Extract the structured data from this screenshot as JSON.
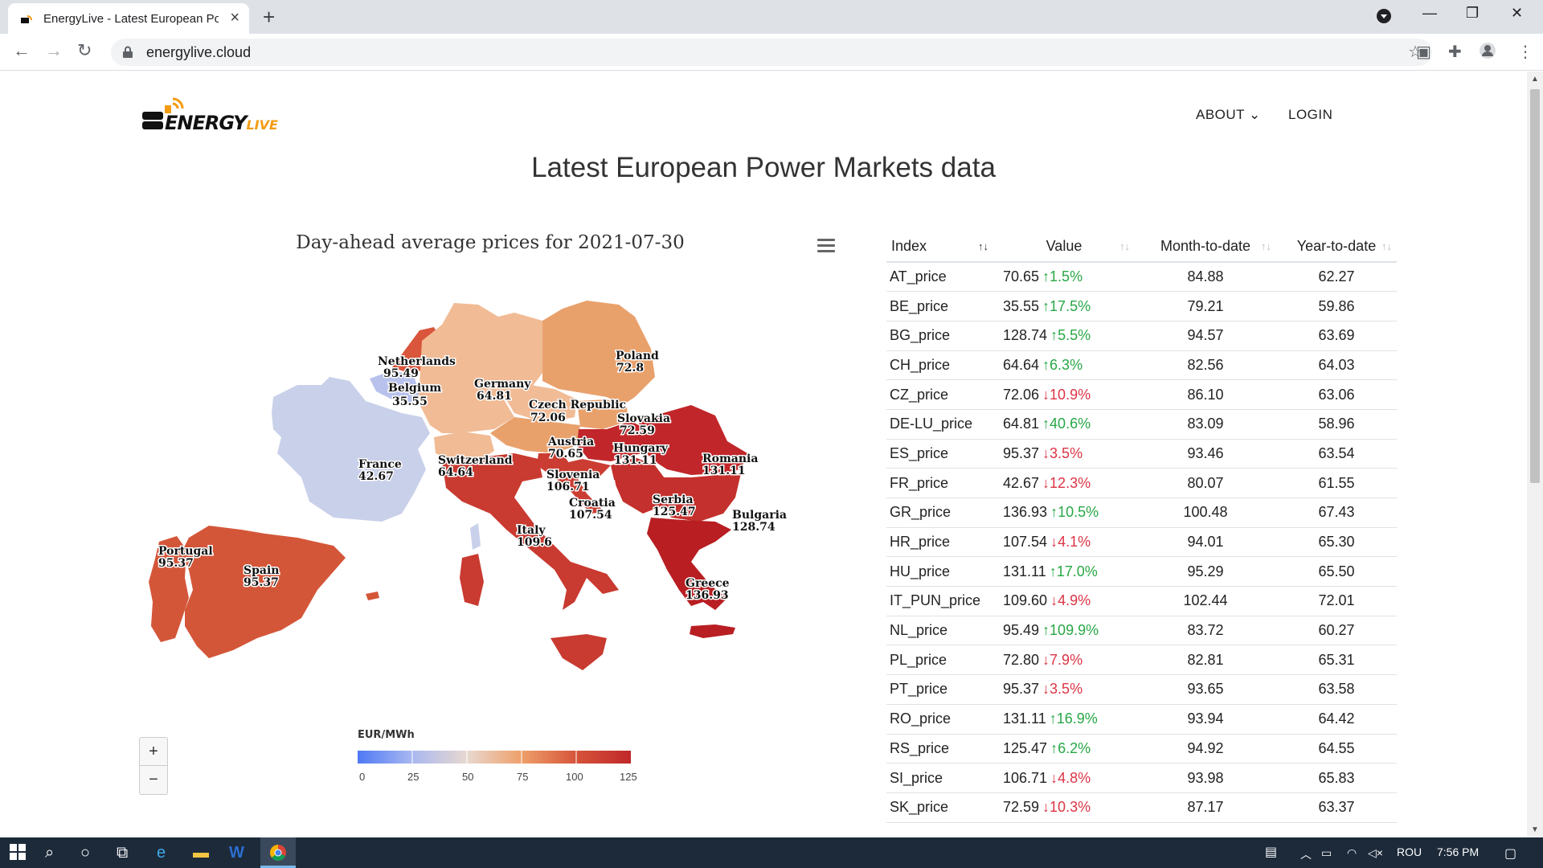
{
  "browser": {
    "tab_title": "EnergyLive - Latest European Po",
    "url": "energylive.cloud"
  },
  "nav": {
    "about": "ABOUT",
    "login": "LOGIN"
  },
  "logo": {
    "text": "ENERGY",
    "sub": "LIVE"
  },
  "page_title": "Latest European Power Markets data",
  "chart": {
    "title": "Day-ahead average prices for 2021-07-30",
    "legend_title": "EUR/MWh",
    "legend_ticks": [
      "0",
      "25",
      "50",
      "75",
      "100",
      "125"
    ]
  },
  "chart_data": {
    "type": "map",
    "title": "Day-ahead average prices for 2021-07-30",
    "unit": "EUR/MWh",
    "range": [
      0,
      125
    ],
    "regions": [
      {
        "name": "Netherlands",
        "value": "95.49"
      },
      {
        "name": "Belgium",
        "value": "35.55"
      },
      {
        "name": "Germany",
        "value": "64.81"
      },
      {
        "name": "Poland",
        "value": "72.8"
      },
      {
        "name": "Czech Republic",
        "value": "72.06"
      },
      {
        "name": "Slovakia",
        "value": "72.59"
      },
      {
        "name": "Austria",
        "value": "70.65"
      },
      {
        "name": "Hungary",
        "value": "131.11"
      },
      {
        "name": "Romania",
        "value": "131.11"
      },
      {
        "name": "France",
        "value": "42.67"
      },
      {
        "name": "Switzerland",
        "value": "64.64"
      },
      {
        "name": "Slovenia",
        "value": "106.71"
      },
      {
        "name": "Croatia",
        "value": "107.54"
      },
      {
        "name": "Serbia",
        "value": "125.47"
      },
      {
        "name": "Bulgaria",
        "value": "128.74"
      },
      {
        "name": "Italy",
        "value": "109.6"
      },
      {
        "name": "Portugal",
        "value": "95.37"
      },
      {
        "name": "Spain",
        "value": "95.37"
      },
      {
        "name": "Greece",
        "value": "136.93"
      }
    ]
  },
  "table": {
    "headers": [
      "Index",
      "Value",
      "Month-to-date",
      "Year-to-date"
    ],
    "rows": [
      {
        "index": "AT_price",
        "value": "70.65",
        "change": "1.5%",
        "dir": "up",
        "mtd": "84.88",
        "ytd": "62.27"
      },
      {
        "index": "BE_price",
        "value": "35.55",
        "change": "17.5%",
        "dir": "up",
        "mtd": "79.21",
        "ytd": "59.86"
      },
      {
        "index": "BG_price",
        "value": "128.74",
        "change": "5.5%",
        "dir": "up",
        "mtd": "94.57",
        "ytd": "63.69"
      },
      {
        "index": "CH_price",
        "value": "64.64",
        "change": "6.3%",
        "dir": "up",
        "mtd": "82.56",
        "ytd": "64.03"
      },
      {
        "index": "CZ_price",
        "value": "72.06",
        "change": "10.9%",
        "dir": "down",
        "mtd": "86.10",
        "ytd": "63.06"
      },
      {
        "index": "DE-LU_price",
        "value": "64.81",
        "change": "40.6%",
        "dir": "up",
        "mtd": "83.09",
        "ytd": "58.96"
      },
      {
        "index": "ES_price",
        "value": "95.37",
        "change": "3.5%",
        "dir": "down",
        "mtd": "93.46",
        "ytd": "63.54"
      },
      {
        "index": "FR_price",
        "value": "42.67",
        "change": "12.3%",
        "dir": "down",
        "mtd": "80.07",
        "ytd": "61.55"
      },
      {
        "index": "GR_price",
        "value": "136.93",
        "change": "10.5%",
        "dir": "up",
        "mtd": "100.48",
        "ytd": "67.43"
      },
      {
        "index": "HR_price",
        "value": "107.54",
        "change": "4.1%",
        "dir": "down",
        "mtd": "94.01",
        "ytd": "65.30"
      },
      {
        "index": "HU_price",
        "value": "131.11",
        "change": "17.0%",
        "dir": "up",
        "mtd": "95.29",
        "ytd": "65.50"
      },
      {
        "index": "IT_PUN_price",
        "value": "109.60",
        "change": "4.9%",
        "dir": "down",
        "mtd": "102.44",
        "ytd": "72.01"
      },
      {
        "index": "NL_price",
        "value": "95.49",
        "change": "109.9%",
        "dir": "up",
        "mtd": "83.72",
        "ytd": "60.27"
      },
      {
        "index": "PL_price",
        "value": "72.80",
        "change": "7.9%",
        "dir": "down",
        "mtd": "82.81",
        "ytd": "65.31"
      },
      {
        "index": "PT_price",
        "value": "95.37",
        "change": "3.5%",
        "dir": "down",
        "mtd": "93.65",
        "ytd": "63.58"
      },
      {
        "index": "RO_price",
        "value": "131.11",
        "change": "16.9%",
        "dir": "up",
        "mtd": "93.94",
        "ytd": "64.42"
      },
      {
        "index": "RS_price",
        "value": "125.47",
        "change": "6.2%",
        "dir": "up",
        "mtd": "94.92",
        "ytd": "64.55"
      },
      {
        "index": "SI_price",
        "value": "106.71",
        "change": "4.8%",
        "dir": "down",
        "mtd": "93.98",
        "ytd": "65.83"
      },
      {
        "index": "SK_price",
        "value": "72.59",
        "change": "10.3%",
        "dir": "down",
        "mtd": "87.17",
        "ytd": "63.37"
      }
    ]
  },
  "taskbar": {
    "lang": "ROU",
    "time": "7:56 PM"
  },
  "colors": {
    "up": "#28a745",
    "down": "#dc3545",
    "scale_low": "#4e79f5",
    "scale_high": "#c0282a"
  }
}
